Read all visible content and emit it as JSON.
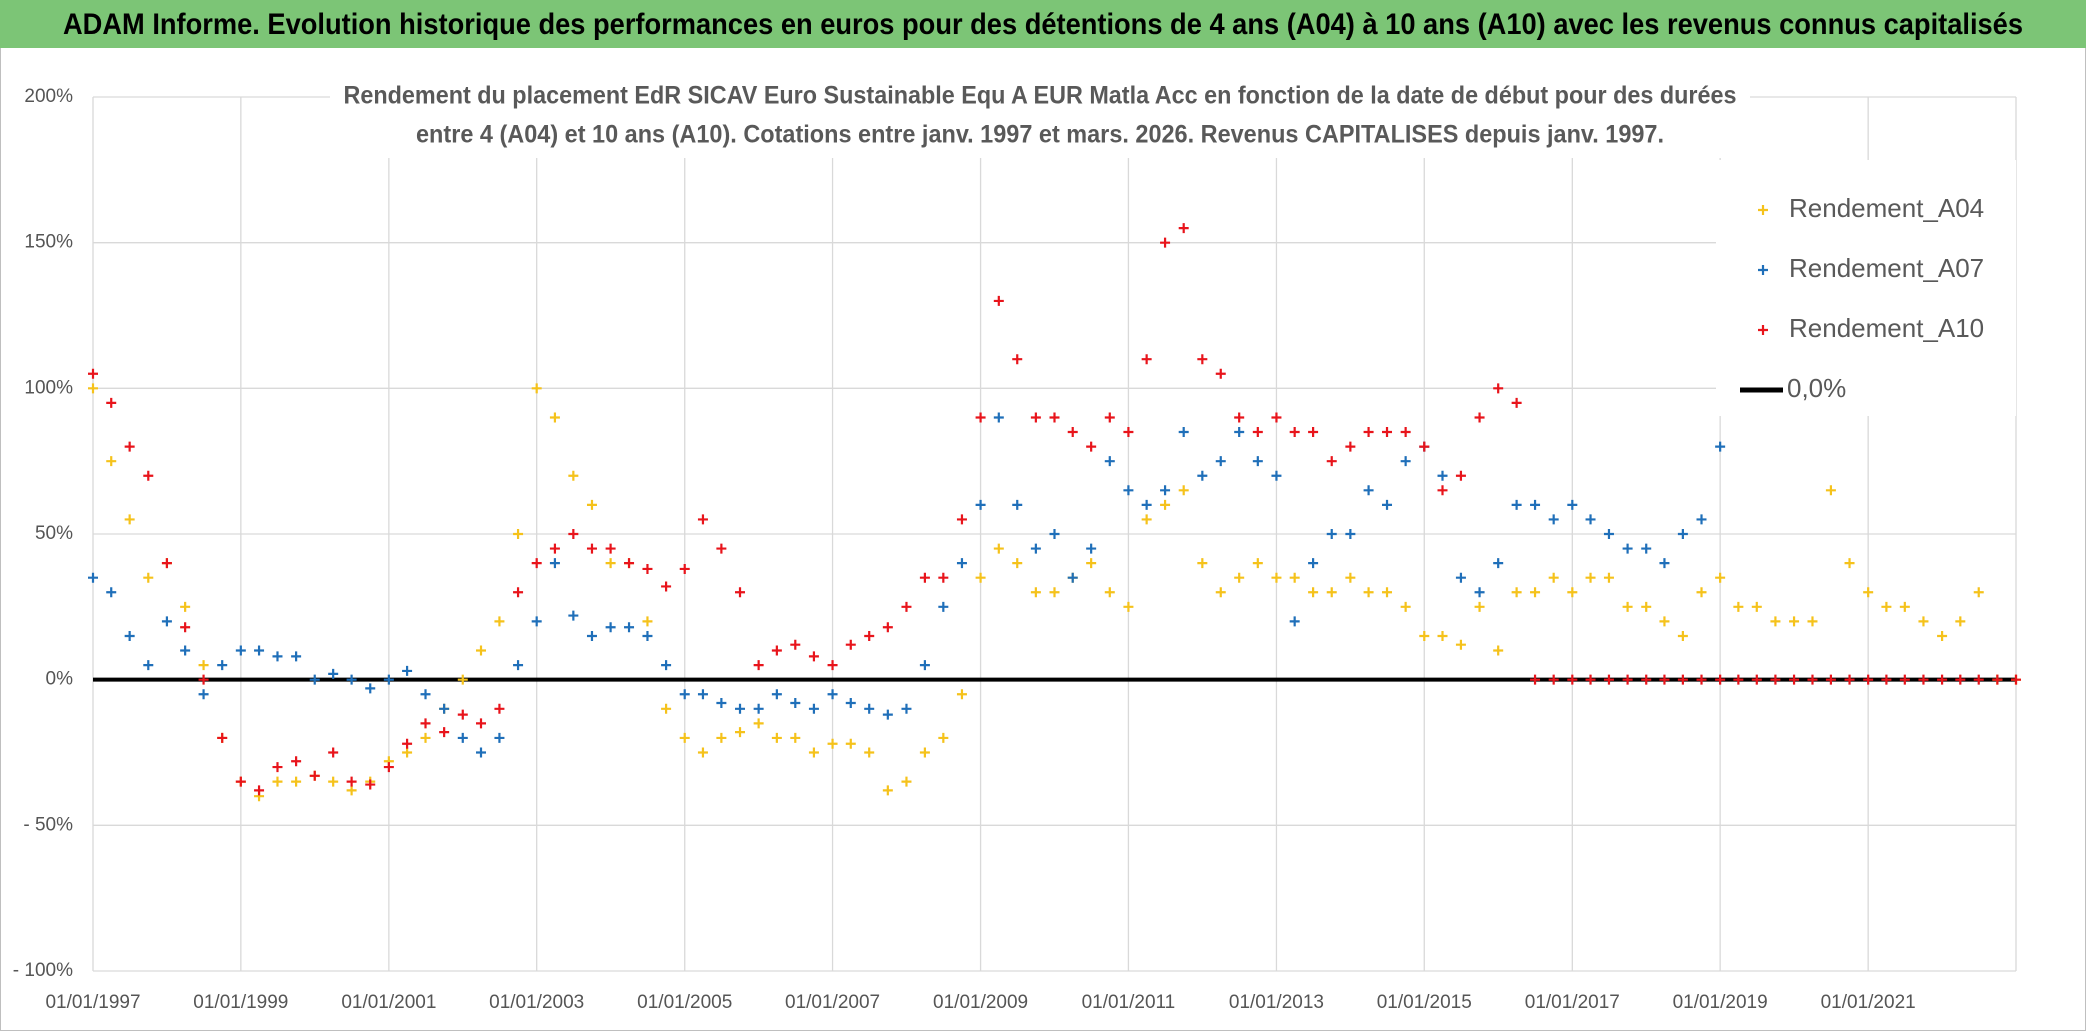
{
  "chart_data": {
    "type": "scatter",
    "title": "ADAM Informe. Evolution historique des performances en euros pour des détentions de 4 ans (A04) à 10 ans (A10) avec les revenus connus capitalisés",
    "subtitle": [
      "Rendement du placement EdR SICAV Euro Sustainable Equ A EUR Matla Acc en fonction de la date de début pour des durées",
      "entre 4 (A04) et 10 ans (A10). Cotations entre janv. 1997 et mars. 2026. Revenus CAPITALISES depuis janv. 1997."
    ],
    "x": [
      "1997-01-01",
      "1997-04-01",
      "1997-07-01",
      "1997-10-01",
      "1998-01-01",
      "1998-04-01",
      "1998-07-01",
      "1998-10-01",
      "1999-01-01",
      "1999-04-01",
      "1999-07-01",
      "1999-10-01",
      "2000-01-01",
      "2000-04-01",
      "2000-07-01",
      "2000-10-01",
      "2001-01-01",
      "2001-04-01",
      "2001-07-01",
      "2001-10-01",
      "2002-01-01",
      "2002-04-01",
      "2002-07-01",
      "2002-10-01",
      "2003-01-01",
      "2003-04-01",
      "2003-07-01",
      "2003-10-01",
      "2004-01-01",
      "2004-04-01",
      "2004-07-01",
      "2004-10-01",
      "2005-01-01",
      "2005-04-01",
      "2005-07-01",
      "2005-10-01",
      "2006-01-01",
      "2006-04-01",
      "2006-07-01",
      "2006-10-01",
      "2007-01-01",
      "2007-04-01",
      "2007-07-01",
      "2007-10-01",
      "2008-01-01",
      "2008-04-01",
      "2008-07-01",
      "2008-10-01",
      "2009-01-01",
      "2009-04-01",
      "2009-07-01",
      "2009-10-01",
      "2010-01-01",
      "2010-04-01",
      "2010-07-01",
      "2010-10-01",
      "2011-01-01",
      "2011-04-01",
      "2011-07-01",
      "2011-10-01",
      "2012-01-01",
      "2012-04-01",
      "2012-07-01",
      "2012-10-01",
      "2013-01-01",
      "2013-04-01",
      "2013-07-01",
      "2013-10-01",
      "2014-01-01",
      "2014-04-01",
      "2014-07-01",
      "2014-10-01",
      "2015-01-01",
      "2015-04-01",
      "2015-07-01",
      "2015-10-01",
      "2016-01-01",
      "2016-04-01",
      "2016-07-01",
      "2016-10-01",
      "2017-01-01",
      "2017-04-01",
      "2017-07-01",
      "2017-10-01",
      "2018-01-01",
      "2018-04-01",
      "2018-07-01",
      "2018-10-01",
      "2019-01-01",
      "2019-04-01",
      "2019-07-01",
      "2019-10-01",
      "2020-01-01",
      "2020-04-01",
      "2020-07-01",
      "2020-10-01",
      "2021-01-01",
      "2021-04-01",
      "2021-07-01",
      "2021-10-01",
      "2022-01-01",
      "2022-04-01",
      "2022-07-01",
      "2022-10-01",
      "2023-01-01"
    ],
    "series": [
      {
        "name": "Rendement_A04",
        "color": "#f5c21b",
        "values": [
          100,
          75,
          55,
          35,
          40,
          25,
          5,
          -20,
          -35,
          -40,
          -35,
          -35,
          -33,
          -35,
          -38,
          -35,
          -28,
          -25,
          -20,
          -10,
          0,
          10,
          20,
          50,
          100,
          90,
          70,
          60,
          40,
          40,
          20,
          -10,
          -20,
          -25,
          -20,
          -18,
          -15,
          -20,
          -20,
          -25,
          -22,
          -22,
          -25,
          -38,
          -35,
          -25,
          -20,
          -5,
          35,
          45,
          40,
          30,
          30,
          35,
          40,
          30,
          25,
          55,
          60,
          65,
          40,
          30,
          35,
          40,
          35,
          35,
          30,
          30,
          35,
          30,
          30,
          25,
          15,
          15,
          12,
          25,
          10,
          30,
          30,
          35,
          30,
          35,
          35,
          25,
          25,
          20,
          15,
          30,
          35,
          25,
          25,
          20,
          20,
          20,
          65,
          40,
          30,
          25,
          25,
          20,
          15,
          20,
          30,
          0,
          0
        ]
      },
      {
        "name": "Rendement_A07",
        "color": "#1f6fb9",
        "values": [
          35,
          30,
          15,
          5,
          20,
          10,
          -5,
          5,
          10,
          10,
          8,
          8,
          0,
          2,
          0,
          -3,
          0,
          3,
          -5,
          -10,
          -20,
          -25,
          -20,
          5,
          20,
          40,
          22,
          15,
          18,
          18,
          15,
          5,
          -5,
          -5,
          -8,
          -10,
          -10,
          -5,
          -8,
          -10,
          -5,
          -8,
          -10,
          -12,
          -10,
          5,
          25,
          40,
          60,
          90,
          60,
          45,
          50,
          35,
          45,
          75,
          65,
          60,
          65,
          85,
          70,
          75,
          85,
          75,
          70,
          20,
          40,
          50,
          50,
          65,
          60,
          75,
          80,
          70,
          35,
          30,
          40,
          60,
          60,
          55,
          60,
          55,
          50,
          45,
          45,
          40,
          50,
          55,
          80,
          null,
          null,
          null,
          null,
          null,
          null,
          null,
          null,
          null,
          null,
          null,
          null,
          null,
          null,
          null,
          null
        ]
      },
      {
        "name": "Rendement_A10",
        "color": "#e8141b",
        "values": [
          105,
          95,
          80,
          70,
          40,
          18,
          0,
          -20,
          -35,
          -38,
          -30,
          -28,
          -33,
          -25,
          -35,
          -36,
          -30,
          -22,
          -15,
          -18,
          -12,
          -15,
          -10,
          30,
          40,
          45,
          50,
          45,
          45,
          40,
          38,
          32,
          38,
          55,
          45,
          30,
          5,
          10,
          12,
          8,
          5,
          12,
          15,
          18,
          25,
          35,
          35,
          55,
          90,
          130,
          110,
          90,
          90,
          85,
          80,
          90,
          85,
          110,
          150,
          155,
          110,
          105,
          90,
          85,
          90,
          85,
          85,
          75,
          80,
          85,
          85,
          85,
          80,
          65,
          70,
          90,
          100,
          95,
          0,
          0,
          0,
          0,
          0,
          0,
          0,
          0,
          0,
          0,
          0,
          0,
          0,
          0,
          0,
          0,
          0,
          0,
          0,
          0,
          0,
          0,
          0,
          0,
          0,
          0,
          0
        ]
      }
    ],
    "reference_line": {
      "name": "0,0%",
      "value": 0,
      "color": "#000000"
    },
    "xlim": [
      "1997-01-01",
      "2023-01-01"
    ],
    "xticks": [
      {
        "value": "1997-01-01",
        "label": "01/01/1997"
      },
      {
        "value": "1999-01-01",
        "label": "01/01/1999"
      },
      {
        "value": "2001-01-01",
        "label": "01/01/2001"
      },
      {
        "value": "2003-01-01",
        "label": "01/01/2003"
      },
      {
        "value": "2005-01-01",
        "label": "01/01/2005"
      },
      {
        "value": "2007-01-01",
        "label": "01/01/2007"
      },
      {
        "value": "2009-01-01",
        "label": "01/01/2009"
      },
      {
        "value": "2011-01-01",
        "label": "01/01/2011"
      },
      {
        "value": "2013-01-01",
        "label": "01/01/2013"
      },
      {
        "value": "2015-01-01",
        "label": "01/01/2015"
      },
      {
        "value": "2017-01-01",
        "label": "01/01/2017"
      },
      {
        "value": "2019-01-01",
        "label": "01/01/2019"
      },
      {
        "value": "2021-01-01",
        "label": "01/01/2021"
      }
    ],
    "ylim": [
      -100,
      200
    ],
    "yticks": [
      {
        "value": -100,
        "label": "- 100%"
      },
      {
        "value": -50,
        "label": "- 50%"
      },
      {
        "value": 0,
        "label": "0%"
      },
      {
        "value": 50,
        "label": "50%"
      },
      {
        "value": 100,
        "label": "100%"
      },
      {
        "value": 150,
        "label": "150%"
      },
      {
        "value": 200,
        "label": "200%"
      }
    ],
    "grid": true,
    "legend": "upper right"
  }
}
